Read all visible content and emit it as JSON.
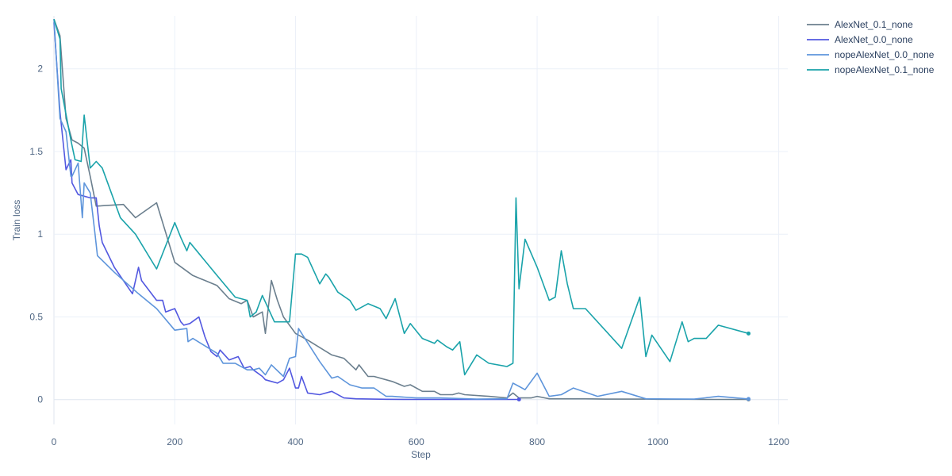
{
  "chart_data": {
    "type": "line",
    "title": "",
    "xlabel": "Step",
    "ylabel": "Train loss",
    "xlim": [
      0,
      1215
    ],
    "ylim": [
      -0.15,
      2.32
    ],
    "xticks": [
      0,
      200,
      400,
      600,
      800,
      1000,
      1200
    ],
    "yticks": [
      0,
      0.5,
      1,
      1.5,
      2
    ],
    "ytick_labels": [
      "0",
      "0.5",
      "1",
      "1.5",
      "2"
    ],
    "grid": true,
    "legend_position": "top-right",
    "series": [
      {
        "name": "AlexNet_0.1_none",
        "color": "#6b7f8e",
        "x": [
          0,
          10,
          20,
          30,
          40,
          50,
          60,
          70,
          115,
          135,
          170,
          200,
          230,
          270,
          290,
          310,
          320,
          330,
          345,
          350,
          360,
          370,
          380,
          400,
          420,
          460,
          480,
          500,
          505,
          520,
          530,
          560,
          580,
          590,
          610,
          630,
          640,
          660,
          670,
          680,
          720,
          750,
          760,
          770,
          790,
          800,
          820,
          840,
          880,
          920,
          980,
          1000,
          1050,
          1080,
          1100,
          1150
        ],
        "y": [
          2.3,
          2.2,
          1.7,
          1.57,
          1.55,
          1.52,
          1.35,
          1.17,
          1.18,
          1.1,
          1.19,
          0.83,
          0.75,
          0.69,
          0.61,
          0.58,
          0.6,
          0.5,
          0.53,
          0.4,
          0.72,
          0.6,
          0.5,
          0.4,
          0.36,
          0.27,
          0.25,
          0.18,
          0.21,
          0.14,
          0.14,
          0.11,
          0.08,
          0.09,
          0.05,
          0.05,
          0.03,
          0.03,
          0.04,
          0.03,
          0.02,
          0.01,
          0.04,
          0.01,
          0.01,
          0.02,
          0.005,
          0.005,
          0.005,
          0.003,
          0.003,
          0.002,
          0.002,
          0.001,
          0.001,
          0.001
        ]
      },
      {
        "name": "AlexNet_0.0_none",
        "color": "#5258e0",
        "x": [
          0,
          10,
          20,
          28,
          30,
          40,
          50,
          60,
          70,
          75,
          80,
          100,
          130,
          140,
          145,
          170,
          180,
          185,
          200,
          210,
          215,
          225,
          240,
          250,
          260,
          270,
          275,
          290,
          305,
          315,
          325,
          330,
          345,
          350,
          360,
          370,
          380,
          390,
          400,
          405,
          410,
          420,
          440,
          460,
          480,
          500,
          550,
          600,
          700,
          770
        ],
        "y": [
          2.28,
          1.74,
          1.39,
          1.45,
          1.31,
          1.24,
          1.23,
          1.22,
          1.22,
          1.05,
          0.95,
          0.8,
          0.64,
          0.8,
          0.72,
          0.6,
          0.6,
          0.53,
          0.55,
          0.47,
          0.45,
          0.46,
          0.5,
          0.38,
          0.29,
          0.26,
          0.3,
          0.24,
          0.26,
          0.19,
          0.2,
          0.18,
          0.14,
          0.12,
          0.11,
          0.1,
          0.12,
          0.19,
          0.07,
          0.07,
          0.14,
          0.04,
          0.03,
          0.05,
          0.01,
          0.005,
          0.002,
          0.001,
          0.001,
          0.001
        ]
      },
      {
        "name": "nopeAlexNet_0.0_none",
        "color": "#5e95db",
        "x": [
          0,
          10,
          20,
          28,
          30,
          40,
          47,
          50,
          60,
          68,
          72,
          100,
          140,
          170,
          200,
          220,
          222,
          230,
          270,
          280,
          300,
          320,
          330,
          340,
          350,
          360,
          380,
          390,
          400,
          405,
          440,
          460,
          470,
          490,
          510,
          530,
          550,
          560,
          600,
          640,
          700,
          750,
          760,
          770,
          780,
          800,
          820,
          840,
          860,
          900,
          940,
          980,
          1020,
          1060,
          1100,
          1150
        ],
        "y": [
          2.3,
          1.7,
          1.62,
          1.35,
          1.35,
          1.43,
          1.1,
          1.31,
          1.25,
          1.0,
          0.87,
          0.77,
          0.64,
          0.55,
          0.42,
          0.43,
          0.35,
          0.37,
          0.28,
          0.22,
          0.22,
          0.18,
          0.18,
          0.19,
          0.15,
          0.21,
          0.14,
          0.25,
          0.26,
          0.43,
          0.23,
          0.13,
          0.14,
          0.09,
          0.07,
          0.07,
          0.02,
          0.02,
          0.01,
          0.01,
          0.003,
          0.005,
          0.1,
          0.08,
          0.06,
          0.16,
          0.02,
          0.03,
          0.07,
          0.02,
          0.05,
          0.005,
          0.004,
          0.003,
          0.02,
          0.004
        ]
      },
      {
        "name": "nopeAlexNet_0.1_none",
        "color": "#1aa3aa",
        "x": [
          0,
          10,
          12,
          28,
          35,
          45,
          50,
          60,
          70,
          80,
          110,
          135,
          170,
          200,
          210,
          220,
          225,
          270,
          300,
          320,
          325,
          335,
          345,
          365,
          380,
          390,
          400,
          410,
          420,
          440,
          450,
          455,
          470,
          490,
          500,
          520,
          540,
          550,
          565,
          580,
          590,
          610,
          630,
          635,
          650,
          660,
          672,
          680,
          700,
          720,
          750,
          760,
          765,
          770,
          780,
          800,
          820,
          830,
          840,
          850,
          860,
          880,
          940,
          970,
          980,
          990,
          1020,
          1040,
          1050,
          1060,
          1080,
          1100,
          1150
        ],
        "y": [
          2.3,
          2.18,
          1.88,
          1.57,
          1.45,
          1.44,
          1.72,
          1.4,
          1.44,
          1.4,
          1.1,
          1.0,
          0.79,
          1.07,
          0.98,
          0.9,
          0.95,
          0.75,
          0.62,
          0.6,
          0.5,
          0.53,
          0.63,
          0.47,
          0.47,
          0.47,
          0.88,
          0.88,
          0.86,
          0.7,
          0.76,
          0.74,
          0.65,
          0.6,
          0.54,
          0.58,
          0.55,
          0.49,
          0.61,
          0.4,
          0.46,
          0.37,
          0.34,
          0.36,
          0.32,
          0.3,
          0.35,
          0.15,
          0.27,
          0.22,
          0.2,
          0.22,
          1.22,
          0.67,
          0.97,
          0.8,
          0.6,
          0.62,
          0.9,
          0.7,
          0.55,
          0.55,
          0.31,
          0.62,
          0.26,
          0.39,
          0.23,
          0.47,
          0.35,
          0.37,
          0.37,
          0.45,
          0.4
        ]
      }
    ]
  }
}
